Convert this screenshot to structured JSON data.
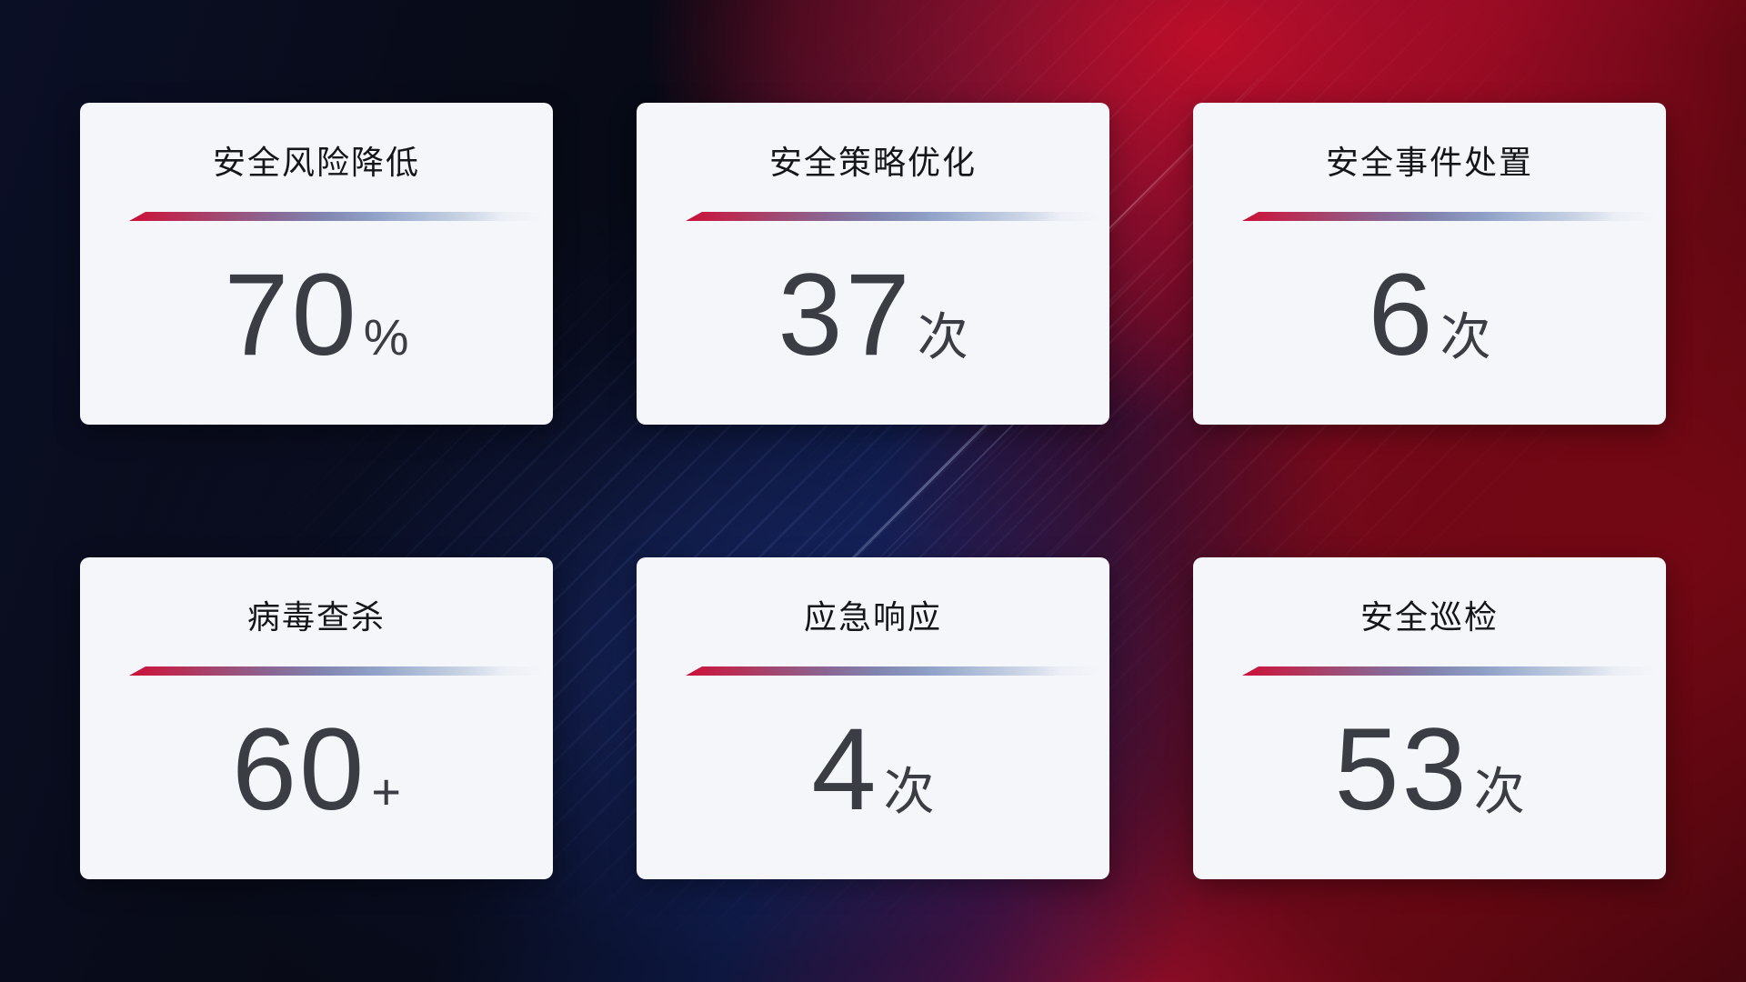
{
  "theme": {
    "card_bg": "#f5f6fa",
    "title_color": "#15161a",
    "value_color": "#3a3d44",
    "divider_red": "#cb1038",
    "divider_blue": "#c9d3e4",
    "background_navy": "#0d1840",
    "background_red": "#930d28"
  },
  "cards": [
    {
      "title": "安全风险降低",
      "value": "70",
      "unit": "%"
    },
    {
      "title": "安全策略优化",
      "value": "37",
      "unit": "次"
    },
    {
      "title": "安全事件处置",
      "value": "6",
      "unit": "次"
    },
    {
      "title": "病毒查杀",
      "value": "60",
      "unit": "+"
    },
    {
      "title": "应急响应",
      "value": "4",
      "unit": "次"
    },
    {
      "title": "安全巡检",
      "value": "53",
      "unit": "次"
    }
  ]
}
